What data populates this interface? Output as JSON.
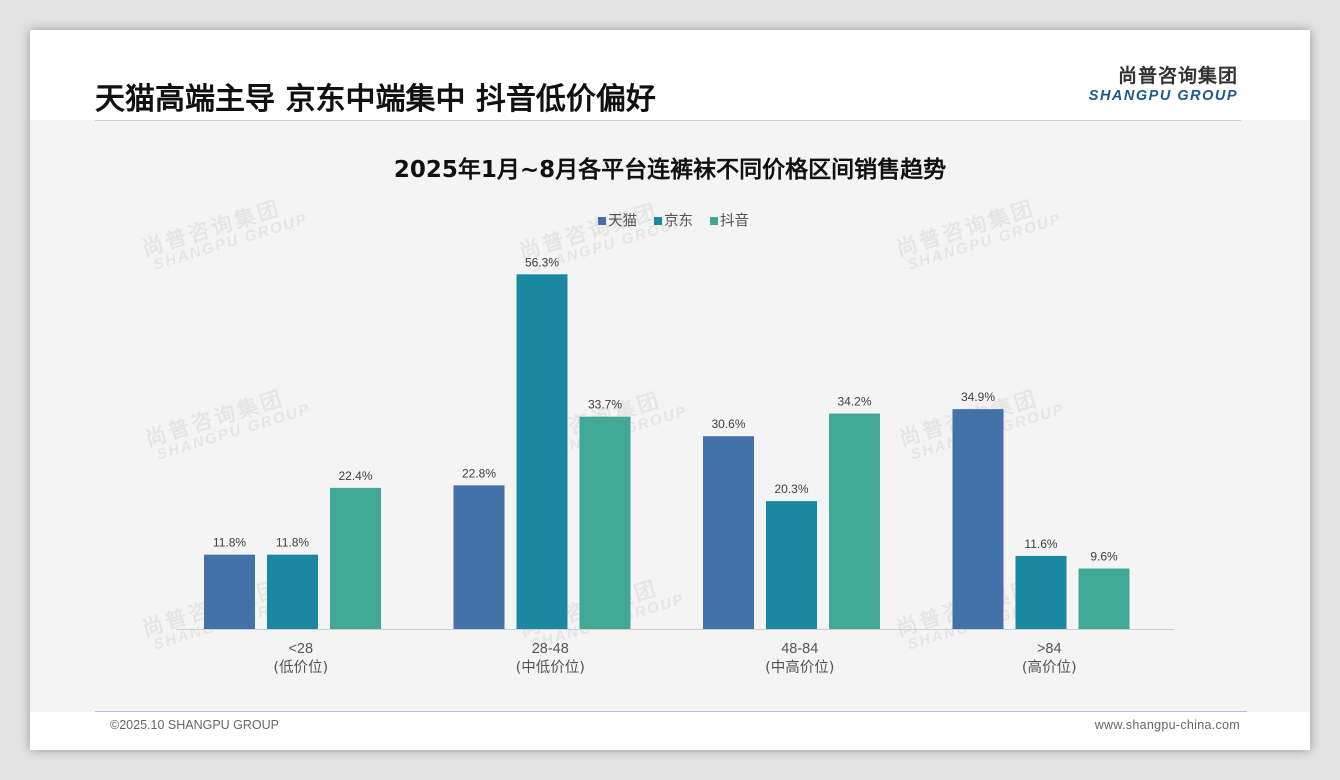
{
  "header": {
    "title": "天猫高端主导 京东中端集中 抖音低价偏好",
    "brand_cn": "尚普咨询集团",
    "brand_en": "SHANGPU GROUP"
  },
  "watermark": {
    "cn": "尚普咨询集团",
    "en": "SHANGPU GROUP"
  },
  "footer": {
    "copyright": "©2025.10 SHANGPU GROUP",
    "website": "www.shangpu-china.com"
  },
  "colors": {
    "tmall": "#4272a8",
    "jd": "#1a88a1",
    "douyin": "#40a895"
  },
  "chart_data": {
    "type": "bar",
    "title": "2025年1月~8月各平台连裤袜不同价格区间销售趋势",
    "categories": [
      "<28",
      "28-48",
      "48-84",
      ">84"
    ],
    "category_sublabels": [
      "(低价位)",
      "(中低价位)",
      "(中高价位)",
      "(高价位)"
    ],
    "series": [
      {
        "name": "天猫",
        "values": [
          11.8,
          22.8,
          30.6,
          34.9
        ],
        "labels": [
          "11.8%",
          "22.8%",
          "30.6%",
          "34.9%"
        ]
      },
      {
        "name": "京东",
        "values": [
          11.8,
          56.3,
          20.3,
          11.6
        ],
        "labels": [
          "11.8%",
          "56.3%",
          "20.3%",
          "11.6%"
        ]
      },
      {
        "name": "抖音",
        "values": [
          22.4,
          33.7,
          34.2,
          9.6
        ],
        "labels": [
          "22.4%",
          "33.7%",
          "34.2%",
          "9.6%"
        ]
      }
    ],
    "ylim": [
      0,
      60
    ],
    "unit": "%",
    "legend_position": "top-center",
    "grid": false,
    "xlabel": "",
    "ylabel": ""
  }
}
